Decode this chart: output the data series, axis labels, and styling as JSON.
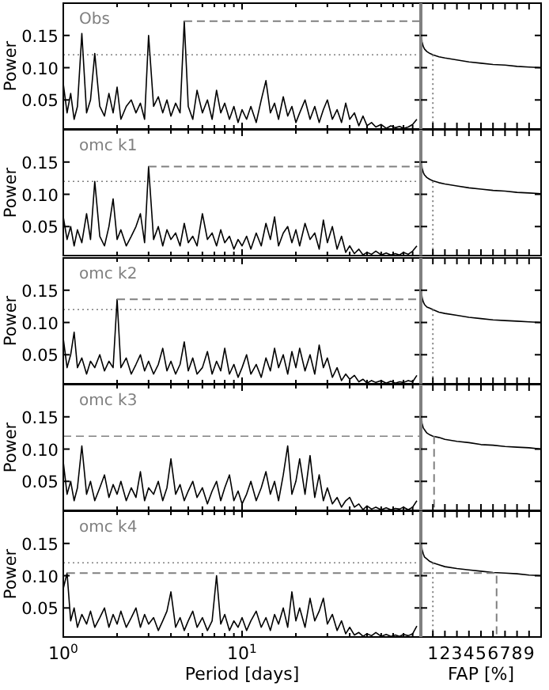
{
  "chart_data": [
    {
      "type": "line",
      "title": "Obs",
      "ylabel": "Power",
      "log": "x",
      "tick_labels": "y",
      "xlim": [
        1,
        100
      ],
      "ylim": [
        0.005,
        0.2
      ],
      "xticks": [
        1,
        2,
        3,
        4,
        5,
        6,
        7,
        8,
        9,
        10,
        20,
        30,
        40,
        50,
        60,
        70,
        80,
        90
      ],
      "yticks": [
        {
          "value": 0.05,
          "label": "0.05"
        },
        {
          "value": 0.1,
          "label": "0.10"
        },
        {
          "value": 0.15,
          "label": "0.15"
        }
      ],
      "x": [
        1.0,
        1.05,
        1.1,
        1.15,
        1.2,
        1.27,
        1.35,
        1.42,
        1.5,
        1.6,
        1.7,
        1.8,
        1.9,
        2.0,
        2.1,
        2.25,
        2.4,
        2.55,
        2.7,
        2.85,
        3.0,
        3.2,
        3.4,
        3.6,
        3.8,
        4.0,
        4.25,
        4.5,
        4.75,
        5.0,
        5.3,
        5.6,
        6.0,
        6.4,
        6.8,
        7.2,
        7.6,
        8.0,
        8.5,
        9.0,
        9.5,
        10,
        10.6,
        11.2,
        12,
        12.8,
        13.6,
        14.4,
        15.2,
        16,
        17,
        18,
        19,
        20,
        21,
        22.5,
        24,
        25.5,
        27,
        28.5,
        30,
        32,
        34,
        36,
        38,
        40,
        42.5,
        45,
        47.5,
        50,
        53,
        56,
        60,
        64,
        68,
        72,
        76,
        80,
        85,
        90,
        95
      ],
      "series": [
        {
          "color": "#000000",
          "values": [
            0.075,
            0.03,
            0.06,
            0.02,
            0.04,
            0.153,
            0.03,
            0.05,
            0.122,
            0.04,
            0.025,
            0.06,
            0.03,
            0.07,
            0.02,
            0.04,
            0.05,
            0.03,
            0.045,
            0.02,
            0.15,
            0.04,
            0.055,
            0.03,
            0.05,
            0.025,
            0.045,
            0.03,
            0.172,
            0.04,
            0.02,
            0.065,
            0.03,
            0.05,
            0.02,
            0.065,
            0.03,
            0.045,
            0.02,
            0.04,
            0.015,
            0.035,
            0.02,
            0.04,
            0.015,
            0.05,
            0.08,
            0.03,
            0.045,
            0.02,
            0.055,
            0.025,
            0.04,
            0.015,
            0.03,
            0.05,
            0.02,
            0.04,
            0.015,
            0.035,
            0.05,
            0.02,
            0.035,
            0.015,
            0.045,
            0.02,
            0.03,
            0.01,
            0.025,
            0.01,
            0.015,
            0.008,
            0.012,
            0.006,
            0.01,
            0.007,
            0.009,
            0.006,
            0.008,
            0.012,
            0.02
          ]
        },
        {
          "color": "#808080",
          "line_style": "dashed",
          "x": [
            4.75,
            100
          ],
          "values": [
            0.172,
            0.172
          ]
        }
      ],
      "ref_lines": [
        {
          "axis": "y",
          "value": 0.12,
          "line_style": "dotted",
          "color": "#808080"
        }
      ]
    },
    {
      "type": "line",
      "tick_labels": false,
      "xlim": [
        0,
        10
      ],
      "ylim": [
        0.005,
        0.2
      ],
      "xticks": [
        1,
        2,
        3,
        4,
        5,
        6,
        7,
        8,
        9
      ],
      "yticks": [
        {
          "value": 0.05,
          "label": null
        },
        {
          "value": 0.1,
          "label": null
        },
        {
          "value": 0.15,
          "label": null
        }
      ],
      "series": [
        {
          "color": "#000000",
          "x": [
            0.05,
            0.1,
            0.2,
            0.3,
            0.5,
            0.75,
            1,
            1.5,
            2,
            3,
            4,
            5,
            6,
            7,
            8,
            9,
            10
          ],
          "values": [
            0.15,
            0.14,
            0.133,
            0.129,
            0.125,
            0.122,
            0.12,
            0.117,
            0.115,
            0.112,
            0.109,
            0.107,
            0.105,
            0.104,
            0.102,
            0.101,
            0.1
          ]
        },
        {
          "color": "#808080",
          "line_style": "dotted",
          "x": [
            1,
            1
          ],
          "values": [
            0.12,
            0.005
          ]
        }
      ]
    },
    {
      "type": "line",
      "title": "omc k1",
      "ylabel": "Power",
      "log": "x",
      "tick_labels": "y",
      "xlim": [
        1,
        100
      ],
      "ylim": [
        0.005,
        0.2
      ],
      "xticks": [
        1,
        2,
        3,
        4,
        5,
        6,
        7,
        8,
        9,
        10,
        20,
        30,
        40,
        50,
        60,
        70,
        80,
        90
      ],
      "yticks": [
        {
          "value": 0.05,
          "label": "0.05"
        },
        {
          "value": 0.1,
          "label": "0.10"
        },
        {
          "value": 0.15,
          "label": "0.15"
        }
      ],
      "x": [
        1.0,
        1.05,
        1.1,
        1.15,
        1.2,
        1.27,
        1.35,
        1.42,
        1.5,
        1.6,
        1.7,
        1.8,
        1.9,
        2.0,
        2.1,
        2.25,
        2.4,
        2.55,
        2.7,
        2.85,
        3.0,
        3.2,
        3.4,
        3.6,
        3.8,
        4.0,
        4.25,
        4.5,
        4.75,
        5.0,
        5.3,
        5.6,
        6.0,
        6.4,
        6.8,
        7.2,
        7.6,
        8.0,
        8.5,
        9.0,
        9.5,
        10,
        10.6,
        11.2,
        12,
        12.8,
        13.6,
        14.4,
        15.2,
        16,
        17,
        18,
        19,
        20,
        21,
        22.5,
        24,
        25.5,
        27,
        28.5,
        30,
        32,
        34,
        36,
        38,
        40,
        42.5,
        45,
        47.5,
        50,
        53,
        56,
        60,
        64,
        68,
        72,
        76,
        80,
        85,
        90,
        95
      ],
      "series": [
        {
          "color": "#000000",
          "values": [
            0.065,
            0.03,
            0.05,
            0.02,
            0.045,
            0.025,
            0.07,
            0.03,
            0.12,
            0.035,
            0.02,
            0.05,
            0.093,
            0.03,
            0.045,
            0.02,
            0.035,
            0.05,
            0.07,
            0.025,
            0.143,
            0.03,
            0.05,
            0.02,
            0.045,
            0.03,
            0.04,
            0.02,
            0.055,
            0.025,
            0.035,
            0.02,
            0.07,
            0.03,
            0.04,
            0.02,
            0.045,
            0.025,
            0.035,
            0.015,
            0.03,
            0.02,
            0.035,
            0.015,
            0.04,
            0.02,
            0.055,
            0.03,
            0.065,
            0.02,
            0.04,
            0.05,
            0.025,
            0.045,
            0.02,
            0.055,
            0.03,
            0.04,
            0.015,
            0.06,
            0.025,
            0.05,
            0.015,
            0.035,
            0.01,
            0.02,
            0.008,
            0.015,
            0.006,
            0.01,
            0.007,
            0.012,
            0.006,
            0.009,
            0.006,
            0.008,
            0.006,
            0.01,
            0.007,
            0.012,
            0.02
          ]
        },
        {
          "color": "#808080",
          "line_style": "dashed",
          "x": [
            3.0,
            100
          ],
          "values": [
            0.143,
            0.143
          ]
        }
      ],
      "ref_lines": [
        {
          "axis": "y",
          "value": 0.12,
          "line_style": "dotted",
          "color": "#808080"
        }
      ]
    },
    {
      "type": "line",
      "tick_labels": false,
      "xlim": [
        0,
        10
      ],
      "ylim": [
        0.005,
        0.2
      ],
      "xticks": [
        1,
        2,
        3,
        4,
        5,
        6,
        7,
        8,
        9
      ],
      "yticks": [
        {
          "value": 0.05,
          "label": null
        },
        {
          "value": 0.1,
          "label": null
        },
        {
          "value": 0.15,
          "label": null
        }
      ],
      "series": [
        {
          "color": "#000000",
          "x": [
            0.05,
            0.1,
            0.2,
            0.3,
            0.5,
            0.75,
            1,
            1.5,
            2,
            3,
            4,
            5,
            6,
            7,
            8,
            9,
            10
          ],
          "values": [
            0.152,
            0.141,
            0.134,
            0.13,
            0.126,
            0.123,
            0.121,
            0.118,
            0.116,
            0.113,
            0.11,
            0.108,
            0.106,
            0.105,
            0.103,
            0.102,
            0.101
          ]
        },
        {
          "color": "#808080",
          "line_style": "dotted",
          "x": [
            1,
            1
          ],
          "values": [
            0.12,
            0.005
          ]
        }
      ]
    },
    {
      "type": "line",
      "title": "omc k2",
      "ylabel": "Power",
      "log": "x",
      "tick_labels": "y",
      "xlim": [
        1,
        100
      ],
      "ylim": [
        0.005,
        0.2
      ],
      "xticks": [
        1,
        2,
        3,
        4,
        5,
        6,
        7,
        8,
        9,
        10,
        20,
        30,
        40,
        50,
        60,
        70,
        80,
        90
      ],
      "yticks": [
        {
          "value": 0.05,
          "label": "0.05"
        },
        {
          "value": 0.1,
          "label": "0.10"
        },
        {
          "value": 0.15,
          "label": "0.15"
        }
      ],
      "x": [
        1.0,
        1.05,
        1.1,
        1.15,
        1.2,
        1.27,
        1.35,
        1.42,
        1.5,
        1.6,
        1.7,
        1.8,
        1.9,
        2.0,
        2.1,
        2.25,
        2.4,
        2.55,
        2.7,
        2.85,
        3.0,
        3.2,
        3.4,
        3.6,
        3.8,
        4.0,
        4.25,
        4.5,
        4.75,
        5.0,
        5.3,
        5.6,
        6.0,
        6.4,
        6.8,
        7.2,
        7.6,
        8.0,
        8.5,
        9.0,
        9.5,
        10,
        10.6,
        11.2,
        12,
        12.8,
        13.6,
        14.4,
        15.2,
        16,
        17,
        18,
        19,
        20,
        21,
        22.5,
        24,
        25.5,
        27,
        28.5,
        30,
        32,
        34,
        36,
        38,
        40,
        42.5,
        45,
        47.5,
        50,
        53,
        56,
        60,
        64,
        68,
        72,
        76,
        80,
        85,
        90,
        95
      ],
      "series": [
        {
          "color": "#000000",
          "values": [
            0.075,
            0.03,
            0.05,
            0.085,
            0.03,
            0.045,
            0.02,
            0.04,
            0.03,
            0.05,
            0.025,
            0.04,
            0.03,
            0.136,
            0.03,
            0.045,
            0.02,
            0.035,
            0.05,
            0.025,
            0.04,
            0.02,
            0.035,
            0.06,
            0.025,
            0.04,
            0.02,
            0.035,
            0.07,
            0.025,
            0.045,
            0.02,
            0.03,
            0.055,
            0.02,
            0.04,
            0.025,
            0.06,
            0.02,
            0.035,
            0.015,
            0.03,
            0.05,
            0.02,
            0.035,
            0.015,
            0.045,
            0.025,
            0.06,
            0.03,
            0.05,
            0.02,
            0.055,
            0.03,
            0.06,
            0.025,
            0.05,
            0.02,
            0.065,
            0.03,
            0.045,
            0.015,
            0.03,
            0.01,
            0.02,
            0.012,
            0.018,
            0.008,
            0.012,
            0.006,
            0.01,
            0.007,
            0.01,
            0.006,
            0.009,
            0.006,
            0.008,
            0.007,
            0.01,
            0.008,
            0.018
          ]
        },
        {
          "color": "#808080",
          "line_style": "dashed",
          "x": [
            2.0,
            100
          ],
          "values": [
            0.136,
            0.136
          ]
        }
      ],
      "ref_lines": [
        {
          "axis": "y",
          "value": 0.12,
          "line_style": "dotted",
          "color": "#808080"
        }
      ]
    },
    {
      "type": "line",
      "tick_labels": false,
      "xlim": [
        0,
        10
      ],
      "ylim": [
        0.005,
        0.2
      ],
      "xticks": [
        1,
        2,
        3,
        4,
        5,
        6,
        7,
        8,
        9
      ],
      "yticks": [
        {
          "value": 0.05,
          "label": null
        },
        {
          "value": 0.1,
          "label": null
        },
        {
          "value": 0.15,
          "label": null
        }
      ],
      "series": [
        {
          "color": "#000000",
          "x": [
            0.05,
            0.1,
            0.2,
            0.3,
            0.5,
            0.75,
            1,
            1.5,
            2,
            3,
            4,
            5,
            6,
            7,
            8,
            9,
            10
          ],
          "values": [
            0.149,
            0.139,
            0.132,
            0.128,
            0.124,
            0.122,
            0.12,
            0.116,
            0.114,
            0.111,
            0.108,
            0.106,
            0.104,
            0.103,
            0.102,
            0.101,
            0.1
          ]
        },
        {
          "color": "#808080",
          "line_style": "dotted",
          "x": [
            1,
            1
          ],
          "values": [
            0.12,
            0.005
          ]
        }
      ]
    },
    {
      "type": "line",
      "title": "omc k3",
      "ylabel": "Power",
      "log": "x",
      "tick_labels": "y",
      "xlim": [
        1,
        100
      ],
      "ylim": [
        0.005,
        0.2
      ],
      "xticks": [
        1,
        2,
        3,
        4,
        5,
        6,
        7,
        8,
        9,
        10,
        20,
        30,
        40,
        50,
        60,
        70,
        80,
        90
      ],
      "yticks": [
        {
          "value": 0.05,
          "label": "0.05"
        },
        {
          "value": 0.1,
          "label": "0.10"
        },
        {
          "value": 0.15,
          "label": "0.15"
        }
      ],
      "x": [
        1.0,
        1.05,
        1.1,
        1.15,
        1.2,
        1.27,
        1.35,
        1.42,
        1.5,
        1.6,
        1.7,
        1.8,
        1.9,
        2.0,
        2.1,
        2.25,
        2.4,
        2.55,
        2.7,
        2.85,
        3.0,
        3.2,
        3.4,
        3.6,
        3.8,
        4.0,
        4.25,
        4.5,
        4.75,
        5.0,
        5.3,
        5.6,
        6.0,
        6.4,
        6.8,
        7.2,
        7.6,
        8.0,
        8.5,
        9.0,
        9.5,
        10,
        10.6,
        11.2,
        12,
        12.8,
        13.6,
        14.4,
        15.2,
        16,
        17,
        18,
        19,
        20,
        21,
        22.5,
        24,
        25.5,
        27,
        28.5,
        30,
        32,
        34,
        36,
        38,
        40,
        42.5,
        45,
        47.5,
        50,
        53,
        56,
        60,
        64,
        68,
        72,
        76,
        80,
        85,
        90,
        95
      ],
      "series": [
        {
          "color": "#000000",
          "values": [
            0.08,
            0.03,
            0.05,
            0.02,
            0.04,
            0.105,
            0.03,
            0.05,
            0.02,
            0.04,
            0.06,
            0.025,
            0.045,
            0.03,
            0.05,
            0.02,
            0.04,
            0.025,
            0.065,
            0.02,
            0.04,
            0.03,
            0.05,
            0.02,
            0.04,
            0.085,
            0.03,
            0.045,
            0.02,
            0.035,
            0.05,
            0.025,
            0.04,
            0.015,
            0.035,
            0.05,
            0.02,
            0.04,
            0.06,
            0.02,
            0.035,
            0.015,
            0.03,
            0.05,
            0.02,
            0.04,
            0.065,
            0.03,
            0.05,
            0.02,
            0.06,
            0.105,
            0.03,
            0.05,
            0.085,
            0.03,
            0.09,
            0.025,
            0.06,
            0.02,
            0.04,
            0.015,
            0.025,
            0.01,
            0.02,
            0.025,
            0.01,
            0.015,
            0.006,
            0.012,
            0.007,
            0.01,
            0.006,
            0.009,
            0.006,
            0.008,
            0.007,
            0.01,
            0.006,
            0.01,
            0.02
          ]
        }
      ],
      "ref_lines": [
        {
          "axis": "y",
          "value": 0.12,
          "line_style": "dashed",
          "color": "#808080"
        }
      ]
    },
    {
      "type": "line",
      "tick_labels": false,
      "xlim": [
        0,
        10
      ],
      "ylim": [
        0.005,
        0.2
      ],
      "xticks": [
        1,
        2,
        3,
        4,
        5,
        6,
        7,
        8,
        9
      ],
      "yticks": [
        {
          "value": 0.05,
          "label": null
        },
        {
          "value": 0.1,
          "label": null
        },
        {
          "value": 0.15,
          "label": null
        }
      ],
      "series": [
        {
          "color": "#000000",
          "x": [
            0.05,
            0.1,
            0.2,
            0.3,
            0.5,
            0.75,
            1,
            1.5,
            2,
            3,
            4,
            5,
            6,
            7,
            8,
            9,
            10
          ],
          "values": [
            0.151,
            0.14,
            0.133,
            0.13,
            0.125,
            0.122,
            0.12,
            0.118,
            0.115,
            0.112,
            0.11,
            0.107,
            0.106,
            0.104,
            0.103,
            0.102,
            0.1
          ]
        },
        {
          "color": "#808080",
          "line_style": "dashed",
          "x": [
            1.1,
            1.1
          ],
          "values": [
            0.12,
            0.005
          ]
        }
      ]
    },
    {
      "type": "line",
      "title": "omc k4",
      "ylabel": "Power",
      "xlabel": "Period [days]",
      "log": "x",
      "xlim": [
        1,
        100
      ],
      "ylim": [
        0.005,
        0.2
      ],
      "xticks": [
        {
          "value": 1,
          "label": "10$^{0}$"
        },
        {
          "value": 2,
          "label": null
        },
        {
          "value": 3,
          "label": null
        },
        {
          "value": 4,
          "label": null
        },
        {
          "value": 5,
          "label": null
        },
        {
          "value": 6,
          "label": null
        },
        {
          "value": 7,
          "label": null
        },
        {
          "value": 8,
          "label": null
        },
        {
          "value": 9,
          "label": null
        },
        {
          "value": 10,
          "label": "10$^{1}$"
        },
        {
          "value": 20,
          "label": null
        },
        {
          "value": 30,
          "label": null
        },
        {
          "value": 40,
          "label": null
        },
        {
          "value": 50,
          "label": null
        },
        {
          "value": 60,
          "label": null
        },
        {
          "value": 70,
          "label": null
        },
        {
          "value": 80,
          "label": null
        },
        {
          "value": 90,
          "label": null
        }
      ],
      "yticks": [
        {
          "value": 0.05,
          "label": "0.05"
        },
        {
          "value": 0.1,
          "label": "0.10"
        },
        {
          "value": 0.15,
          "label": "0.15"
        }
      ],
      "x": [
        1.0,
        1.05,
        1.1,
        1.15,
        1.2,
        1.27,
        1.35,
        1.42,
        1.5,
        1.6,
        1.7,
        1.8,
        1.9,
        2.0,
        2.1,
        2.25,
        2.4,
        2.55,
        2.7,
        2.85,
        3.0,
        3.2,
        3.4,
        3.6,
        3.8,
        4.0,
        4.25,
        4.5,
        4.75,
        5.0,
        5.3,
        5.6,
        6.0,
        6.4,
        6.8,
        7.2,
        7.6,
        8.0,
        8.5,
        9.0,
        9.5,
        10,
        10.6,
        11.2,
        12,
        12.8,
        13.6,
        14.4,
        15.2,
        16,
        17,
        18,
        19,
        20,
        21,
        22.5,
        24,
        25.5,
        27,
        28.5,
        30,
        32,
        34,
        36,
        38,
        40,
        42.5,
        45,
        47.5,
        50,
        53,
        56,
        60,
        64,
        68,
        72,
        76,
        80,
        85,
        90,
        95
      ],
      "series": [
        {
          "color": "#000000",
          "values": [
            0.08,
            0.104,
            0.03,
            0.05,
            0.02,
            0.04,
            0.025,
            0.045,
            0.02,
            0.035,
            0.05,
            0.02,
            0.04,
            0.025,
            0.045,
            0.02,
            0.035,
            0.05,
            0.02,
            0.04,
            0.025,
            0.035,
            0.015,
            0.03,
            0.045,
            0.075,
            0.02,
            0.035,
            0.015,
            0.03,
            0.045,
            0.02,
            0.035,
            0.015,
            0.03,
            0.1,
            0.025,
            0.04,
            0.015,
            0.03,
            0.02,
            0.035,
            0.015,
            0.03,
            0.045,
            0.02,
            0.035,
            0.015,
            0.04,
            0.025,
            0.05,
            0.02,
            0.075,
            0.03,
            0.05,
            0.02,
            0.065,
            0.03,
            0.045,
            0.065,
            0.025,
            0.04,
            0.015,
            0.03,
            0.01,
            0.02,
            0.008,
            0.012,
            0.006,
            0.01,
            0.007,
            0.012,
            0.006,
            0.009,
            0.006,
            0.008,
            0.006,
            0.009,
            0.007,
            0.01,
            0.022
          ]
        },
        {
          "color": "#808080",
          "line_style": "dashed",
          "x": [
            1.05,
            100
          ],
          "values": [
            0.104,
            0.104
          ]
        }
      ],
      "ref_lines": [
        {
          "axis": "y",
          "value": 0.12,
          "line_style": "dotted",
          "color": "#808080"
        }
      ]
    },
    {
      "type": "line",
      "xlabel": "FAP [%]",
      "tick_labels": "x",
      "xlim": [
        0,
        10
      ],
      "ylim": [
        0.005,
        0.2
      ],
      "xticks": [
        1,
        2,
        3,
        4,
        5,
        6,
        7,
        8,
        9
      ],
      "yticks": [
        {
          "value": 0.05,
          "label": null
        },
        {
          "value": 0.1,
          "label": null
        },
        {
          "value": 0.15,
          "label": null
        }
      ],
      "series": [
        {
          "color": "#000000",
          "x": [
            0.05,
            0.1,
            0.2,
            0.3,
            0.5,
            0.75,
            1,
            1.5,
            2,
            3,
            4,
            5,
            6,
            7,
            8,
            9,
            10
          ],
          "values": [
            0.15,
            0.141,
            0.134,
            0.129,
            0.126,
            0.122,
            0.12,
            0.117,
            0.114,
            0.111,
            0.109,
            0.107,
            0.105,
            0.104,
            0.103,
            0.101,
            0.1
          ]
        },
        {
          "color": "#808080",
          "line_style": "dotted",
          "x": [
            1,
            1
          ],
          "values": [
            0.12,
            0.005
          ]
        },
        {
          "color": "#808080",
          "line_style": "dashed",
          "x": [
            0.2,
            6.3,
            6.3
          ],
          "values": [
            0.104,
            0.104,
            0.005
          ]
        }
      ]
    }
  ]
}
